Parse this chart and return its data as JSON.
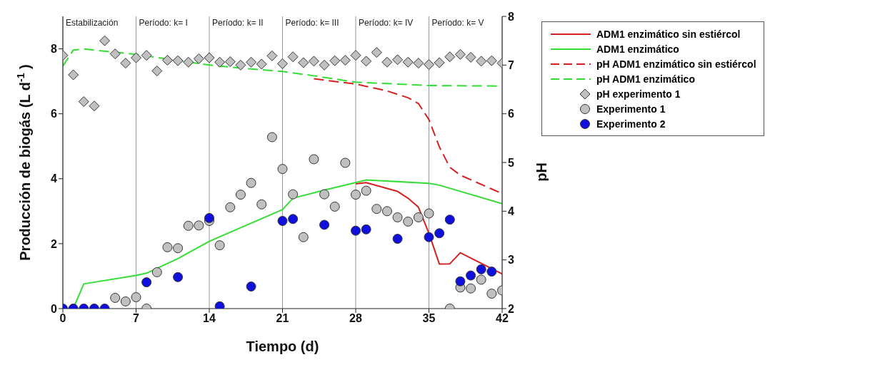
{
  "chart_data": {
    "type": "line",
    "xlabel": "Tiempo (d)",
    "ylabel": "Producción de biogás (L d$^{-1}$)",
    "y2label": "pH",
    "xlim": [
      0,
      42
    ],
    "xticks": [
      0,
      7,
      14,
      21,
      28,
      35,
      42
    ],
    "ylim": [
      0,
      9
    ],
    "yticks": [
      0,
      2,
      4,
      6,
      8
    ],
    "y2lim": [
      2,
      8
    ],
    "y2ticks": [
      2,
      3,
      4,
      5,
      6,
      7,
      8
    ],
    "grid": "x",
    "legend": "right",
    "annotations": [
      "Estabilización",
      "Período: k= I",
      "Período: k= II",
      "Período: k= III",
      "Período: k= IV",
      "Período: k= V"
    ],
    "series": [
      {
        "name": "ADM1 enzimático sin estiércol",
        "color": "#d62020",
        "line_style": "solid",
        "marker": "none",
        "x": [
          28,
          29,
          32,
          33,
          34,
          35,
          36,
          37,
          38,
          42
        ],
        "values": [
          3.84,
          3.88,
          3.61,
          3.4,
          3.12,
          2.32,
          1.37,
          1.38,
          1.72,
          1.07
        ]
      },
      {
        "name": "ADM1 enzimático",
        "color": "#33dd33",
        "line_style": "solid",
        "marker": "none",
        "x": [
          0,
          1,
          2,
          7,
          8,
          11,
          14,
          16,
          21,
          22,
          25,
          29,
          35,
          36,
          42
        ],
        "values": [
          0,
          0,
          0.76,
          1.02,
          1.09,
          1.54,
          2.07,
          2.35,
          3.05,
          3.4,
          3.65,
          3.96,
          3.86,
          3.8,
          3.23
        ]
      },
      {
        "name": "pH ADM1 enzimático sin estiércol",
        "axis": "y2",
        "color": "#d62020",
        "line_style": "dashed",
        "marker": "none",
        "x": [
          24,
          28,
          31,
          33,
          34,
          35,
          36,
          37,
          38,
          42
        ],
        "values": [
          6.72,
          6.61,
          6.47,
          6.33,
          6.21,
          5.88,
          5.32,
          4.9,
          4.74,
          4.36
        ]
      },
      {
        "name": "pH ADM1 enzimático",
        "axis": "y2",
        "color": "#33dd33",
        "line_style": "dashed",
        "marker": "none",
        "x": [
          0,
          1,
          2,
          7,
          14,
          18,
          21,
          24,
          28,
          35,
          42
        ],
        "values": [
          6.98,
          7.31,
          7.33,
          7.22,
          7.0,
          6.92,
          6.87,
          6.78,
          6.65,
          6.58,
          6.57
        ]
      },
      {
        "name": "pH experimento 1",
        "type": "scatter",
        "axis": "y2",
        "color": "#c0c0c0",
        "marker": "diamond",
        "x": [
          0,
          1,
          2,
          3,
          4,
          5,
          6,
          7,
          8,
          9,
          10,
          11,
          12,
          13,
          14,
          15,
          16,
          17,
          18,
          19,
          20,
          21,
          22,
          23,
          24,
          25,
          26,
          27,
          28,
          29,
          30,
          31,
          32,
          33,
          34,
          35,
          36,
          37,
          38,
          39,
          40,
          41,
          42
        ],
        "values": [
          7.2,
          6.8,
          6.25,
          6.16,
          7.5,
          7.23,
          7.04,
          7.15,
          7.2,
          6.88,
          7.1,
          7.09,
          7.06,
          7.13,
          7.15,
          7.06,
          7.07,
          7.0,
          7.06,
          7.02,
          7.19,
          7.03,
          7.17,
          7.05,
          7.08,
          7.0,
          7.09,
          7.1,
          7.2,
          7.08,
          7.26,
          7.06,
          7.11,
          7.06,
          7.04,
          7.01,
          7.05,
          7.17,
          7.22,
          7.16,
          7.08,
          7.09,
          7.04
        ]
      },
      {
        "name": "Experimento 1",
        "type": "scatter",
        "color": "#c0c0c0",
        "marker": "circle",
        "x": [
          5,
          6,
          7,
          8,
          9,
          10,
          11,
          12,
          13,
          14,
          15,
          16,
          17,
          18,
          19,
          20,
          21,
          22,
          23,
          24,
          25,
          26,
          27,
          28,
          29,
          30,
          31,
          32,
          33,
          34,
          35,
          37,
          38,
          39,
          40,
          41,
          42
        ],
        "values": [
          0.33,
          0.22,
          0.35,
          0,
          1.12,
          1.89,
          1.86,
          2.55,
          2.56,
          2.7,
          1.95,
          3.12,
          3.51,
          3.87,
          3.21,
          5.28,
          4.3,
          3.52,
          2.2,
          4.6,
          3.52,
          3.14,
          4.49,
          3.51,
          3.63,
          3.07,
          3.0,
          2.81,
          2.68,
          2.81,
          2.93,
          0,
          0.65,
          0.62,
          0.89,
          0.46,
          0.56
        ]
      },
      {
        "name": "Experimento 2",
        "type": "scatter",
        "color": "#1010dd",
        "marker": "circle",
        "x": [
          0,
          1,
          2,
          3,
          4,
          8,
          11,
          14,
          15,
          18,
          21,
          22,
          25,
          28,
          29,
          32,
          35,
          36,
          37,
          38,
          39,
          40,
          41
        ],
        "values": [
          0,
          0,
          0,
          0,
          0,
          0.81,
          0.97,
          2.79,
          0.07,
          0.68,
          2.7,
          2.76,
          2.58,
          2.4,
          2.44,
          2.15,
          2.2,
          2.32,
          2.74,
          0.84,
          1.02,
          1.21,
          1.14
        ]
      }
    ]
  }
}
